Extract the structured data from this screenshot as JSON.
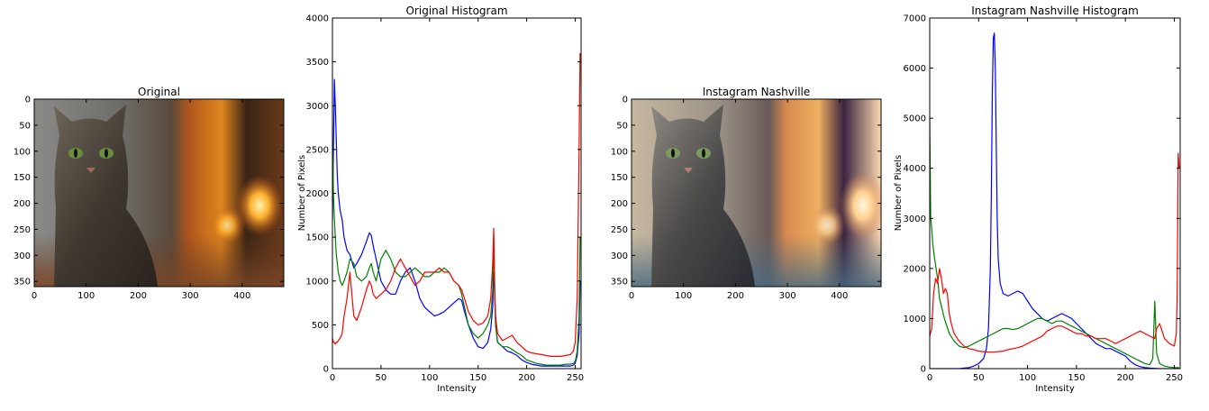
{
  "chart_data": [
    {
      "type": "image",
      "title": "Original",
      "xticks": [
        0,
        100,
        200,
        300,
        400
      ],
      "yticks": [
        0,
        50,
        100,
        150,
        200,
        250,
        300,
        350
      ],
      "xlim": [
        0,
        480
      ],
      "ylim": [
        360,
        0
      ]
    },
    {
      "type": "line",
      "title": "Original Histogram",
      "xlabel": "Intensity",
      "ylabel": "Number of Pixels",
      "xlim": [
        0,
        256
      ],
      "ylim": [
        0,
        4000
      ],
      "xticks": [
        0,
        50,
        100,
        150,
        200,
        250
      ],
      "yticks": [
        0,
        500,
        1000,
        1500,
        2000,
        2500,
        3000,
        3500,
        4000
      ],
      "series": [
        {
          "color": "#0000ff",
          "x": [
            0,
            1,
            2,
            3,
            4,
            5,
            6,
            8,
            10,
            12,
            15,
            18,
            22,
            25,
            30,
            35,
            38,
            40,
            42,
            45,
            50,
            55,
            60,
            65,
            70,
            75,
            80,
            85,
            90,
            95,
            100,
            105,
            110,
            115,
            120,
            125,
            130,
            133,
            136,
            140,
            145,
            150,
            155,
            160,
            163,
            165,
            166,
            167,
            168,
            170,
            175,
            180,
            185,
            190,
            195,
            200,
            205,
            210,
            215,
            220,
            225,
            230,
            235,
            240,
            245,
            248,
            250,
            252,
            254,
            255
          ],
          "y": [
            1700,
            2500,
            3300,
            3000,
            2600,
            2200,
            2000,
            1800,
            1700,
            1500,
            1350,
            1300,
            1150,
            1200,
            1300,
            1450,
            1550,
            1520,
            1400,
            1250,
            1000,
            900,
            850,
            850,
            1000,
            1100,
            1150,
            1000,
            800,
            700,
            650,
            600,
            620,
            650,
            700,
            750,
            800,
            780,
            650,
            500,
            350,
            250,
            230,
            300,
            450,
            700,
            1100,
            900,
            500,
            300,
            250,
            200,
            180,
            150,
            100,
            70,
            50,
            40,
            30,
            30,
            30,
            30,
            30,
            30,
            30,
            40,
            60,
            150,
            400,
            1000
          ]
        },
        {
          "color": "#008000",
          "x": [
            0,
            1,
            2,
            3,
            4,
            5,
            6,
            8,
            10,
            12,
            15,
            18,
            22,
            25,
            30,
            35,
            38,
            40,
            42,
            45,
            50,
            55,
            60,
            65,
            70,
            75,
            80,
            85,
            90,
            95,
            100,
            105,
            110,
            115,
            120,
            125,
            130,
            133,
            136,
            140,
            145,
            150,
            155,
            160,
            163,
            165,
            166,
            167,
            168,
            170,
            175,
            180,
            185,
            190,
            195,
            200,
            205,
            210,
            215,
            220,
            225,
            230,
            235,
            240,
            245,
            248,
            250,
            252,
            254,
            255
          ],
          "y": [
            2600,
            2000,
            1700,
            1500,
            1300,
            1200,
            1100,
            1000,
            950,
            1000,
            1100,
            1250,
            1200,
            1050,
            1000,
            1050,
            1150,
            1200,
            1100,
            1000,
            1250,
            1350,
            1250,
            1100,
            1050,
            1050,
            1100,
            1150,
            1100,
            1050,
            1050,
            1100,
            1100,
            1150,
            1100,
            1000,
            950,
            850,
            700,
            500,
            400,
            350,
            400,
            500,
            600,
            900,
            1500,
            900,
            500,
            300,
            250,
            250,
            220,
            180,
            150,
            100,
            80,
            60,
            50,
            40,
            40,
            40,
            40,
            50,
            50,
            60,
            80,
            200,
            600,
            1500
          ]
        },
        {
          "color": "#ff0000",
          "x": [
            0,
            1,
            2,
            3,
            4,
            5,
            6,
            8,
            10,
            12,
            15,
            18,
            22,
            25,
            30,
            35,
            38,
            40,
            42,
            45,
            50,
            55,
            60,
            65,
            70,
            75,
            80,
            85,
            90,
            95,
            100,
            105,
            110,
            115,
            120,
            125,
            130,
            133,
            136,
            140,
            145,
            150,
            155,
            160,
            163,
            165,
            166,
            167,
            168,
            170,
            175,
            180,
            185,
            190,
            195,
            200,
            205,
            210,
            215,
            220,
            225,
            230,
            235,
            240,
            245,
            248,
            250,
            252,
            254,
            255
          ],
          "y": [
            350,
            300,
            300,
            280,
            300,
            300,
            320,
            350,
            400,
            600,
            800,
            1100,
            600,
            550,
            700,
            900,
            1000,
            950,
            850,
            800,
            850,
            900,
            1000,
            1150,
            1250,
            1150,
            1050,
            950,
            1000,
            1100,
            1100,
            1100,
            1150,
            1100,
            1100,
            1000,
            950,
            900,
            800,
            650,
            550,
            500,
            520,
            600,
            800,
            1200,
            1600,
            1000,
            600,
            400,
            320,
            350,
            380,
            300,
            250,
            200,
            180,
            170,
            160,
            150,
            140,
            140,
            140,
            150,
            160,
            200,
            300,
            800,
            2500,
            3600
          ]
        }
      ]
    },
    {
      "type": "image",
      "title": "Instagram Nashville",
      "xticks": [
        0,
        100,
        200,
        300,
        400
      ],
      "yticks": [
        0,
        50,
        100,
        150,
        200,
        250,
        300,
        350
      ],
      "xlim": [
        0,
        480
      ],
      "ylim": [
        360,
        0
      ]
    },
    {
      "type": "line",
      "title": "Instagram Nashville Histogram",
      "xlabel": "Intensity",
      "ylabel": "Number of Pixels",
      "xlim": [
        0,
        256
      ],
      "ylim": [
        0,
        7000
      ],
      "xticks": [
        0,
        50,
        100,
        150,
        200,
        250
      ],
      "yticks": [
        0,
        1000,
        2000,
        3000,
        4000,
        5000,
        6000,
        7000
      ],
      "series": [
        {
          "color": "#0000ff",
          "x": [
            0,
            10,
            20,
            30,
            40,
            45,
            50,
            55,
            58,
            60,
            62,
            63,
            64,
            65,
            66,
            67,
            68,
            69,
            70,
            72,
            75,
            80,
            85,
            90,
            95,
            100,
            105,
            110,
            115,
            120,
            125,
            130,
            135,
            140,
            145,
            150,
            155,
            160,
            165,
            170,
            175,
            180,
            185,
            190,
            195,
            200,
            205,
            210,
            215,
            220,
            225,
            230,
            235,
            240,
            245,
            250,
            252,
            254,
            255
          ],
          "y": [
            0,
            0,
            0,
            0,
            20,
            50,
            100,
            200,
            400,
            800,
            2000,
            3500,
            5500,
            6600,
            6700,
            6000,
            4500,
            3000,
            2200,
            1700,
            1500,
            1450,
            1500,
            1550,
            1500,
            1350,
            1200,
            1100,
            1000,
            950,
            1000,
            1050,
            1100,
            1050,
            1000,
            900,
            800,
            700,
            600,
            500,
            450,
            400,
            400,
            350,
            300,
            250,
            150,
            80,
            40,
            20,
            10,
            5,
            0,
            0,
            0,
            0,
            0,
            0,
            0
          ]
        },
        {
          "color": "#008000",
          "x": [
            0,
            1,
            2,
            3,
            5,
            8,
            10,
            15,
            20,
            25,
            30,
            35,
            40,
            45,
            50,
            55,
            60,
            65,
            70,
            75,
            80,
            85,
            90,
            95,
            100,
            105,
            110,
            115,
            120,
            125,
            130,
            135,
            140,
            145,
            150,
            155,
            160,
            165,
            170,
            175,
            180,
            185,
            190,
            195,
            200,
            205,
            210,
            215,
            220,
            225,
            228,
            230,
            232,
            235,
            240,
            245,
            250,
            255
          ],
          "y": [
            5000,
            3000,
            2800,
            2500,
            2200,
            1800,
            1400,
            1000,
            700,
            550,
            450,
            420,
            450,
            500,
            550,
            600,
            650,
            700,
            750,
            800,
            800,
            780,
            800,
            850,
            900,
            950,
            1000,
            1000,
            950,
            900,
            950,
            950,
            900,
            850,
            800,
            750,
            700,
            650,
            600,
            550,
            500,
            450,
            400,
            350,
            300,
            250,
            200,
            150,
            100,
            80,
            200,
            1350,
            300,
            100,
            50,
            30,
            20,
            20
          ]
        },
        {
          "color": "#ff0000",
          "x": [
            0,
            2,
            4,
            6,
            8,
            10,
            12,
            14,
            16,
            18,
            20,
            22,
            25,
            30,
            35,
            40,
            45,
            50,
            55,
            60,
            65,
            70,
            75,
            80,
            85,
            90,
            95,
            100,
            105,
            110,
            115,
            120,
            125,
            130,
            135,
            140,
            145,
            150,
            155,
            160,
            165,
            170,
            175,
            180,
            185,
            190,
            195,
            200,
            205,
            210,
            215,
            220,
            225,
            230,
            232,
            235,
            240,
            245,
            250,
            252,
            253,
            254,
            255
          ],
          "y": [
            650,
            800,
            1500,
            1800,
            1700,
            2000,
            1800,
            1500,
            1600,
            1500,
            1100,
            900,
            700,
            550,
            450,
            400,
            380,
            350,
            340,
            330,
            330,
            340,
            350,
            380,
            400,
            420,
            450,
            500,
            550,
            600,
            650,
            750,
            800,
            850,
            850,
            800,
            750,
            700,
            700,
            650,
            650,
            600,
            600,
            600,
            550,
            500,
            550,
            600,
            650,
            700,
            750,
            700,
            650,
            600,
            800,
            900,
            600,
            500,
            450,
            700,
            1500,
            4300,
            4000
          ]
        }
      ]
    }
  ]
}
